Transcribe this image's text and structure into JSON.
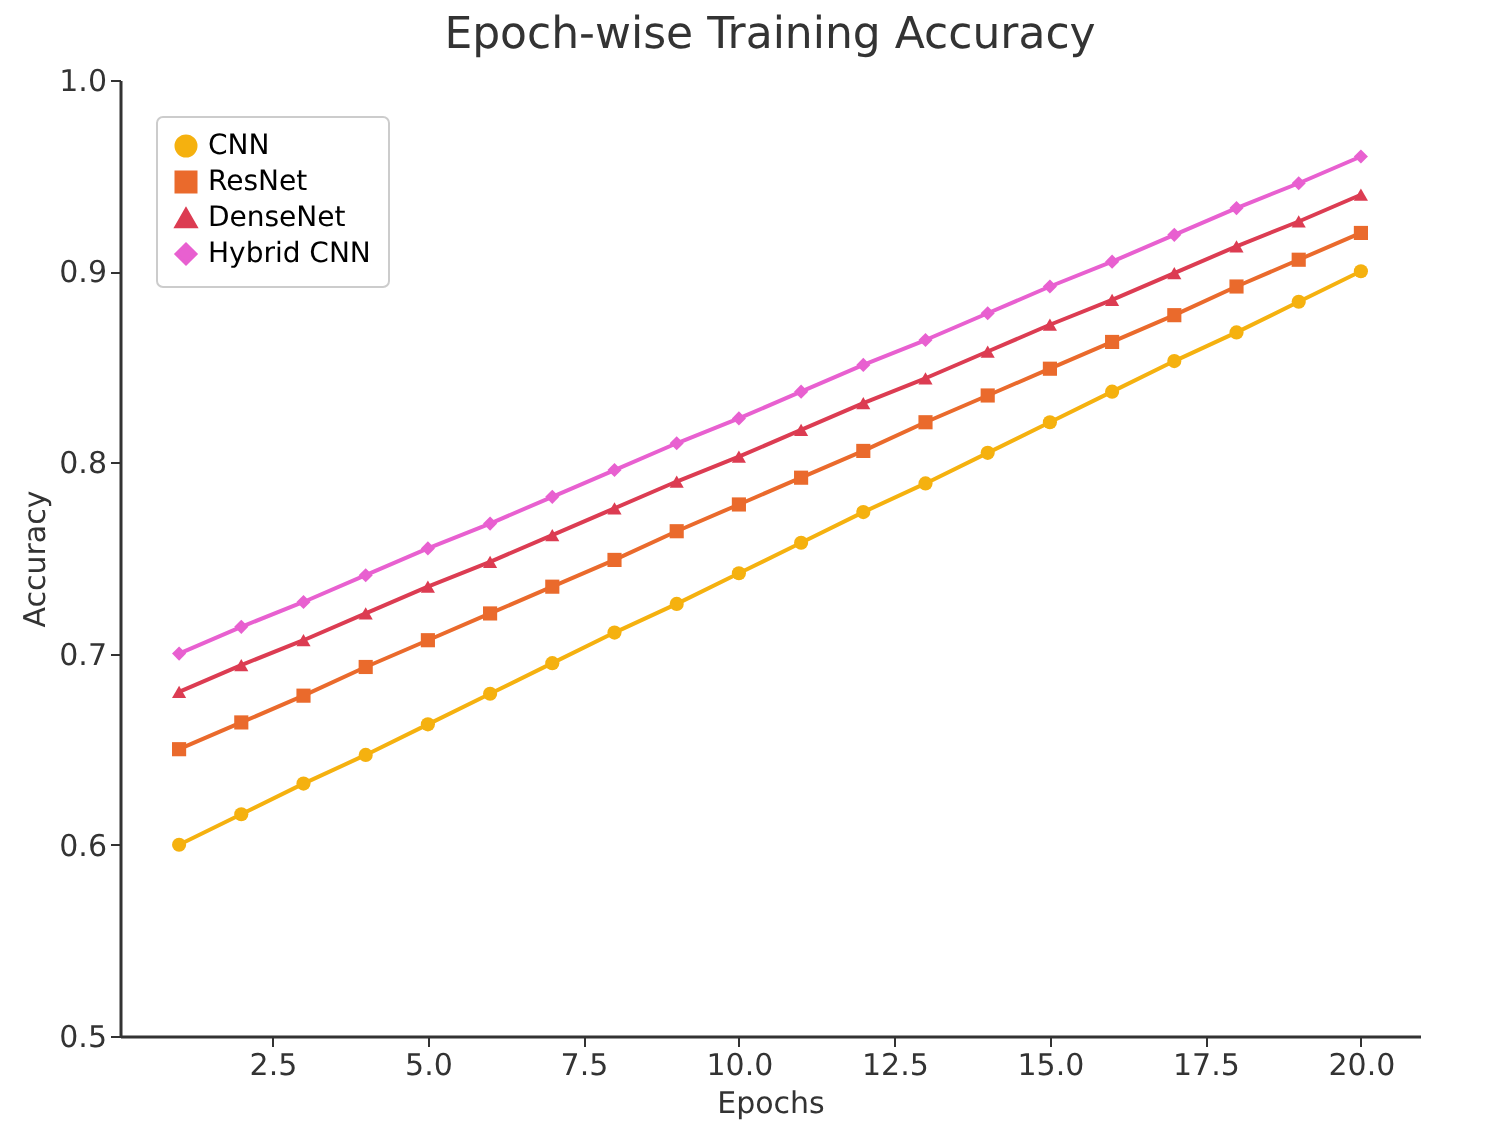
{
  "chart_data": {
    "type": "line",
    "title": "Epoch-wise Training Accuracy",
    "xlabel": "Epochs",
    "ylabel": "Accuracy",
    "x": [
      1,
      2,
      3,
      4,
      5,
      6,
      7,
      8,
      9,
      10,
      11,
      12,
      13,
      14,
      15,
      16,
      17,
      18,
      19,
      20
    ],
    "series": [
      {
        "name": "CNN",
        "color": "#f5b10f",
        "marker": "circle",
        "values": [
          0.6,
          0.616,
          0.632,
          0.647,
          0.663,
          0.679,
          0.695,
          0.711,
          0.726,
          0.742,
          0.758,
          0.774,
          0.789,
          0.805,
          0.821,
          0.837,
          0.853,
          0.868,
          0.884,
          0.9
        ]
      },
      {
        "name": "ResNet",
        "color": "#ea6a2c",
        "marker": "square",
        "values": [
          0.65,
          0.664,
          0.678,
          0.693,
          0.707,
          0.721,
          0.735,
          0.749,
          0.764,
          0.778,
          0.792,
          0.806,
          0.821,
          0.835,
          0.849,
          0.863,
          0.877,
          0.892,
          0.906,
          0.92
        ]
      },
      {
        "name": "DenseNet",
        "color": "#dc3c52",
        "marker": "triangle",
        "values": [
          0.68,
          0.694,
          0.707,
          0.721,
          0.735,
          0.748,
          0.762,
          0.776,
          0.79,
          0.803,
          0.817,
          0.831,
          0.844,
          0.858,
          0.872,
          0.885,
          0.899,
          0.913,
          0.926,
          0.94
        ]
      },
      {
        "name": "Hybrid CNN",
        "color": "#e860d0",
        "marker": "diamond",
        "values": [
          0.7,
          0.714,
          0.727,
          0.741,
          0.755,
          0.768,
          0.782,
          0.796,
          0.81,
          0.823,
          0.837,
          0.851,
          0.864,
          0.878,
          0.892,
          0.905,
          0.919,
          0.933,
          0.946,
          0.96
        ]
      }
    ],
    "xlim": [
      0.05,
      20.95
    ],
    "xticks": [
      2.5,
      {
        "value": 5,
        "label": "5.0"
      },
      7.5,
      {
        "value": 10,
        "label": "10.0"
      },
      12.5,
      {
        "value": 15,
        "label": "15.0"
      },
      17.5,
      {
        "value": 20,
        "label": "20.0"
      }
    ],
    "ylim": [
      0.5,
      1.0
    ],
    "yticks": [
      0.5,
      0.6,
      0.7,
      0.8,
      0.9,
      {
        "value": 1,
        "label": "1.0"
      }
    ],
    "grid": false,
    "legend": "top left",
    "line_style": "solid"
  }
}
